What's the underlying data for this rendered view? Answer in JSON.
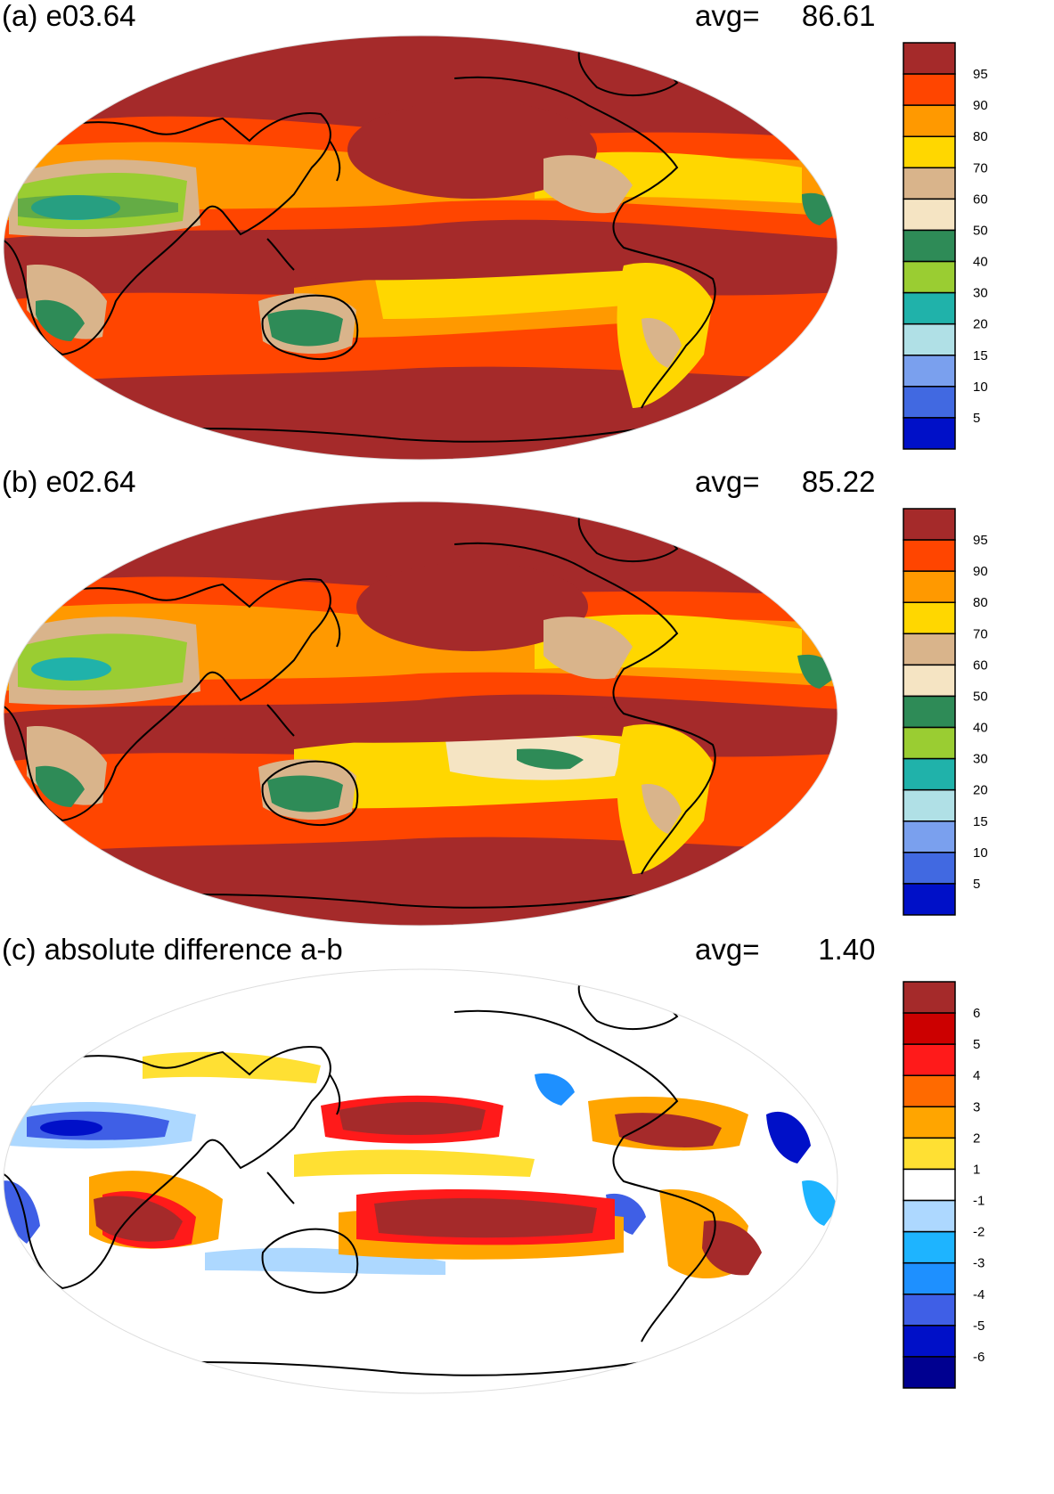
{
  "panels": [
    {
      "title": "(a) e03.64",
      "avg_label": "avg=",
      "avg_value": "86.61",
      "colorbar": {
        "labels": [
          "95",
          "90",
          "80",
          "70",
          "60",
          "50",
          "40",
          "30",
          "20",
          "15",
          "10",
          "5"
        ],
        "colors": [
          "#a52a2a",
          "#ff4500",
          "#ff9900",
          "#ffd700",
          "#d9b48b",
          "#f5e4c3",
          "#2e8b57",
          "#9acd32",
          "#20b2aa",
          "#b0e0e6",
          "#7aa0ee",
          "#4169e1",
          "#0010c8"
        ]
      }
    },
    {
      "title": "(b) e02.64",
      "avg_label": "avg=",
      "avg_value": "85.22",
      "colorbar": {
        "labels": [
          "95",
          "90",
          "80",
          "70",
          "60",
          "50",
          "40",
          "30",
          "20",
          "15",
          "10",
          "5"
        ],
        "colors": [
          "#a52a2a",
          "#ff4500",
          "#ff9900",
          "#ffd700",
          "#d9b48b",
          "#f5e4c3",
          "#2e8b57",
          "#9acd32",
          "#20b2aa",
          "#b0e0e6",
          "#7aa0ee",
          "#4169e1",
          "#0010c8"
        ]
      }
    },
    {
      "title": "(c) absolute difference a-b",
      "avg_label": "avg=",
      "avg_value": "1.40",
      "colorbar": {
        "labels": [
          "6",
          "5",
          "4",
          "3",
          "2",
          "1",
          "-1",
          "-2",
          "-3",
          "-4",
          "-5",
          "-6"
        ],
        "colors": [
          "#a52a2a",
          "#cc0000",
          "#ff1a1a",
          "#ff6a00",
          "#ffa500",
          "#ffe033",
          "#ffffff",
          "#add8ff",
          "#1eb4ff",
          "#1e90ff",
          "#3f5fe6",
          "#0010c8",
          "#000090"
        ]
      }
    }
  ]
}
